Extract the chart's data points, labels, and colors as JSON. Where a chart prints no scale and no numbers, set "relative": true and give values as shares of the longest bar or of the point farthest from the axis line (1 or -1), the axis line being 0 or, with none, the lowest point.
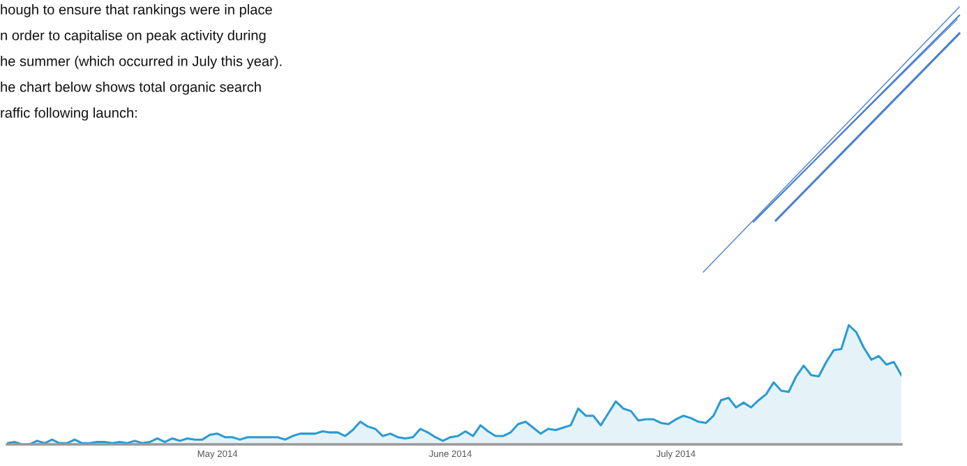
{
  "chart_data": {
    "type": "area",
    "relative": true,
    "annotations": [
      "hough to ensure that rankings were in place",
      "n order to capitalise on peak activity during",
      "he summer (which occurred in July this year).",
      "he chart below shows total organic search",
      "raffic following launch:"
    ],
    "x": [
      "2014-04-03",
      "2014-04-04",
      "2014-04-05",
      "2014-04-06",
      "2014-04-07",
      "2014-04-08",
      "2014-04-09",
      "2014-04-10",
      "2014-04-11",
      "2014-04-12",
      "2014-04-13",
      "2014-04-14",
      "2014-04-15",
      "2014-04-16",
      "2014-04-17",
      "2014-04-18",
      "2014-04-19",
      "2014-04-20",
      "2014-04-21",
      "2014-04-22",
      "2014-04-23",
      "2014-04-24",
      "2014-04-25",
      "2014-04-26",
      "2014-04-27",
      "2014-04-28",
      "2014-04-29",
      "2014-04-30",
      "2014-05-01",
      "2014-05-02",
      "2014-05-03",
      "2014-05-04",
      "2014-05-05",
      "2014-05-06",
      "2014-05-07",
      "2014-05-08",
      "2014-05-09",
      "2014-05-10",
      "2014-05-11",
      "2014-05-12",
      "2014-05-13",
      "2014-05-14",
      "2014-05-15",
      "2014-05-16",
      "2014-05-17",
      "2014-05-18",
      "2014-05-19",
      "2014-05-20",
      "2014-05-21",
      "2014-05-22",
      "2014-05-23",
      "2014-05-24",
      "2014-05-25",
      "2014-05-26",
      "2014-05-27",
      "2014-05-28",
      "2014-05-29",
      "2014-05-30",
      "2014-05-31",
      "2014-06-01",
      "2014-06-02",
      "2014-06-03",
      "2014-06-04",
      "2014-06-05",
      "2014-06-06",
      "2014-06-07",
      "2014-06-08",
      "2014-06-09",
      "2014-06-10",
      "2014-06-11",
      "2014-06-12",
      "2014-06-13",
      "2014-06-14",
      "2014-06-15",
      "2014-06-16",
      "2014-06-17",
      "2014-06-18",
      "2014-06-19",
      "2014-06-20",
      "2014-06-21",
      "2014-06-22",
      "2014-06-23",
      "2014-06-24",
      "2014-06-25",
      "2014-06-26",
      "2014-06-27",
      "2014-06-28",
      "2014-06-29",
      "2014-06-30",
      "2014-07-01",
      "2014-07-02",
      "2014-07-03",
      "2014-07-04",
      "2014-07-05",
      "2014-07-06",
      "2014-07-07",
      "2014-07-08",
      "2014-07-09",
      "2014-07-10",
      "2014-07-11",
      "2014-07-12",
      "2014-07-13",
      "2014-07-14",
      "2014-07-15",
      "2014-07-16",
      "2014-07-17",
      "2014-07-18",
      "2014-07-19",
      "2014-07-20",
      "2014-07-21",
      "2014-07-22",
      "2014-07-23",
      "2014-07-24",
      "2014-07-25",
      "2014-07-26",
      "2014-07-27",
      "2014-07-28",
      "2014-07-29",
      "2014-07-30",
      "2014-07-31"
    ],
    "xlim": [
      "2014-04-03",
      "2014-07-31"
    ],
    "xticks": [
      {
        "value": "2014-05-01",
        "label": "May 2014"
      },
      {
        "value": "2014-06-01",
        "label": "June 2014"
      },
      {
        "value": "2014-07-01",
        "label": "July 2014"
      }
    ],
    "tick_labels": "x",
    "series": [
      {
        "color": "#2a9bd1",
        "values": [
          0.01,
          0.02,
          0,
          0,
          0.03,
          0.01,
          0.04,
          0.01,
          0.01,
          0.04,
          0.01,
          0.01,
          0.02,
          0.02,
          0.01,
          0.02,
          0.01,
          0.03,
          0.01,
          0.02,
          0.05,
          0.02,
          0.05,
          0.03,
          0.05,
          0.04,
          0.04,
          0.08,
          0.09,
          0.06,
          0.06,
          0.04,
          0.06,
          0.06,
          0.06,
          0.06,
          0.06,
          0.04,
          0.07,
          0.09,
          0.09,
          0.09,
          0.11,
          0.1,
          0.1,
          0.07,
          0.12,
          0.19,
          0.15,
          0.13,
          0.07,
          0.09,
          0.06,
          0.05,
          0.06,
          0.13,
          0.1,
          0.06,
          0.03,
          0.06,
          0.07,
          0.11,
          0.07,
          0.16,
          0.11,
          0.07,
          0.07,
          0.1,
          0.17,
          0.19,
          0.14,
          0.09,
          0.13,
          0.12,
          0.14,
          0.16,
          0.3,
          0.24,
          0.24,
          0.16,
          0.26,
          0.36,
          0.3,
          0.28,
          0.2,
          0.21,
          0.21,
          0.18,
          0.17,
          0.21,
          0.24,
          0.22,
          0.19,
          0.18,
          0.24,
          0.37,
          0.39,
          0.31,
          0.35,
          0.31,
          0.37,
          0.42,
          0.52,
          0.45,
          0.44,
          0.57,
          0.66,
          0.58,
          0.57,
          0.69,
          0.79,
          0.8,
          1,
          0.94,
          0.81,
          0.71,
          0.74,
          0.67,
          0.69,
          0.58
        ]
      }
    ]
  }
}
